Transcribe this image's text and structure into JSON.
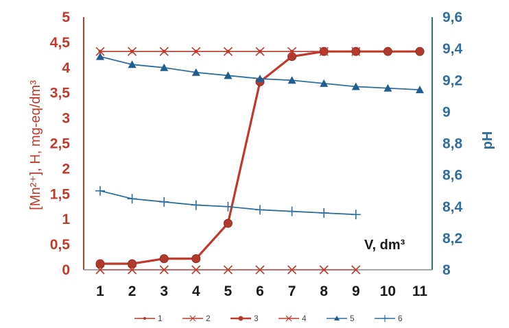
{
  "chart_data": {
    "type": "line",
    "x": [
      1,
      2,
      3,
      4,
      5,
      6,
      7,
      8,
      9,
      10,
      11
    ],
    "x_tick_labels": [
      "1",
      "2",
      "3",
      "4",
      "5",
      "6",
      "7",
      "8",
      "9",
      "10",
      "11"
    ],
    "ylabel_left": "[Mn²⁺], H, mg-eq/dm³",
    "ylabel_right": "pH",
    "ylim_left": [
      0,
      5
    ],
    "ylim_right": [
      8,
      9.6
    ],
    "y_left_tick_labels": [
      "0",
      "0,5",
      "1",
      "1,5",
      "2",
      "2,5",
      "3",
      "3,5",
      "4",
      "4,5",
      "5"
    ],
    "y_right_tick_labels": [
      "8",
      "8,2",
      "8,4",
      "8,6",
      "8,8",
      "9",
      "9,2",
      "9,4",
      "9,6"
    ],
    "annotation": "V, dm³",
    "grid": false,
    "legend_position": "bottom",
    "series": [
      {
        "name": "1",
        "axis": "left",
        "color": "#b03a2e",
        "marker": "dot",
        "values": [
          4.32,
          4.32,
          4.32,
          4.32,
          4.32,
          4.32,
          4.32,
          4.32,
          4.32,
          4.32,
          4.32
        ]
      },
      {
        "name": "2",
        "axis": "left",
        "color": "#c0392b",
        "marker": "x",
        "values": [
          0,
          0,
          0,
          0,
          0,
          0,
          0,
          0,
          0,
          null,
          null
        ]
      },
      {
        "name": "3",
        "axis": "left",
        "color": "#c0392b",
        "marker": "circle",
        "values": [
          0.12,
          0.12,
          0.22,
          0.22,
          0.92,
          3.72,
          4.22,
          4.32,
          4.32,
          4.32,
          4.32
        ]
      },
      {
        "name": "4",
        "axis": "left",
        "color": "#c0392b",
        "marker": "x",
        "values": [
          4.32,
          4.32,
          4.32,
          4.32,
          4.32,
          4.32,
          4.32,
          4.32,
          4.32,
          null,
          null
        ]
      },
      {
        "name": "5",
        "axis": "right",
        "color": "#2e6e9e",
        "marker": "triangle",
        "values": [
          9.35,
          9.3,
          9.28,
          9.25,
          9.23,
          9.21,
          9.2,
          9.18,
          9.16,
          9.15,
          9.14
        ]
      },
      {
        "name": "6",
        "axis": "right",
        "color": "#2e6e9e",
        "marker": "plus",
        "values": [
          8.5,
          8.45,
          8.43,
          8.41,
          8.4,
          8.38,
          8.37,
          8.36,
          8.35,
          null,
          null
        ]
      }
    ]
  }
}
